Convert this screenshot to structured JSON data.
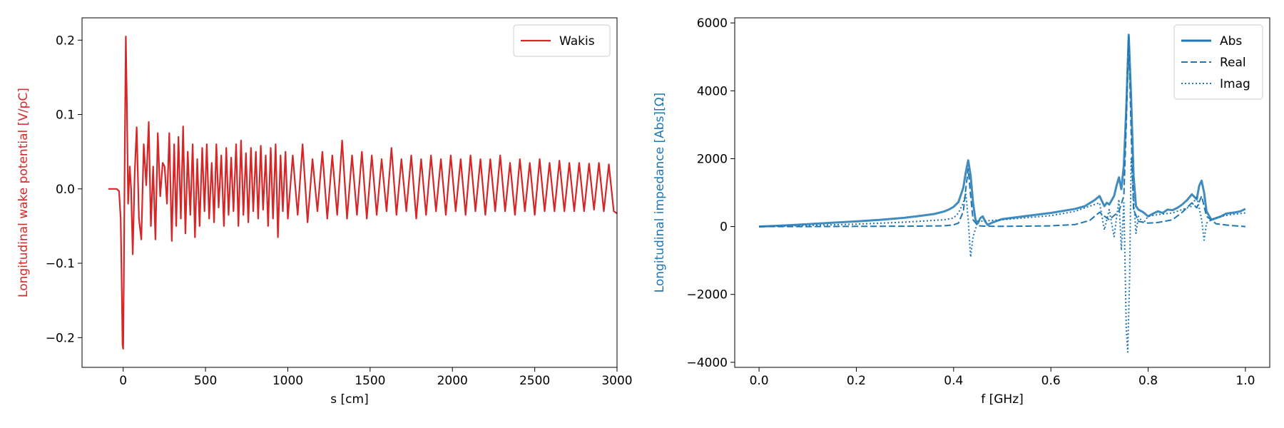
{
  "chart_data": [
    {
      "type": "line",
      "xlabel": "s [cm]",
      "ylabel": "Longitudinal wake potential [V/pC]",
      "xlim": [
        -250,
        3000
      ],
      "ylim": [
        -0.24,
        0.23
      ],
      "xticks": [
        0,
        500,
        1000,
        1500,
        2000,
        2500,
        3000
      ],
      "xtick_labels": [
        "0",
        "500",
        "1000",
        "1500",
        "2000",
        "2500",
        "3000"
      ],
      "yticks": [
        -0.2,
        -0.1,
        0.0,
        0.1,
        0.2
      ],
      "ytick_labels": [
        "−0.2",
        "−0.1",
        "0.0",
        "0.1",
        "0.2"
      ],
      "ylabel_color": "#d62728",
      "grid": false,
      "legend": "top-right",
      "series": [
        {
          "name": "Wakis",
          "color": "#d62728",
          "style": "solid",
          "x": [
            -90,
            -40,
            -25,
            -15,
            -8,
            -4,
            0,
            4,
            10,
            16,
            22,
            30,
            40,
            48,
            58,
            70,
            82,
            96,
            110,
            125,
            140,
            155,
            168,
            182,
            196,
            210,
            225,
            240,
            252,
            266,
            280,
            295,
            310,
            322,
            336,
            350,
            364,
            378,
            392,
            408,
            422,
            436,
            450,
            464,
            480,
            494,
            508,
            522,
            538,
            552,
            566,
            580,
            596,
            612,
            626,
            640,
            656,
            670,
            686,
            700,
            716,
            730,
            746,
            760,
            776,
            790,
            806,
            820,
            836,
            850,
            866,
            880,
            896,
            910,
            926,
            940,
            956,
            970,
            986,
            1000,
            1030,
            1060,
            1090,
            1120,
            1150,
            1180,
            1210,
            1240,
            1270,
            1300,
            1330,
            1360,
            1390,
            1420,
            1450,
            1480,
            1510,
            1540,
            1570,
            1600,
            1630,
            1660,
            1690,
            1720,
            1750,
            1780,
            1810,
            1840,
            1870,
            1900,
            1930,
            1960,
            1990,
            2020,
            2050,
            2080,
            2110,
            2140,
            2170,
            2200,
            2230,
            2260,
            2290,
            2320,
            2350,
            2380,
            2410,
            2440,
            2470,
            2500,
            2530,
            2560,
            2590,
            2620,
            2650,
            2680,
            2710,
            2740,
            2770,
            2800,
            2830,
            2860,
            2890,
            2920,
            2950,
            2980,
            3000
          ],
          "y": [
            0.0,
            0.0,
            -0.003,
            -0.04,
            -0.14,
            -0.21,
            -0.215,
            -0.12,
            0.06,
            0.205,
            0.12,
            -0.02,
            0.03,
            0.0,
            -0.088,
            0.02,
            0.083,
            -0.04,
            -0.068,
            0.06,
            0.005,
            0.09,
            -0.05,
            0.03,
            -0.068,
            0.075,
            -0.01,
            0.035,
            0.03,
            -0.02,
            0.075,
            -0.07,
            0.06,
            -0.05,
            0.07,
            -0.04,
            0.084,
            -0.06,
            0.05,
            -0.035,
            0.06,
            -0.065,
            0.04,
            -0.05,
            0.055,
            -0.03,
            0.06,
            -0.04,
            0.035,
            -0.045,
            0.06,
            -0.025,
            0.045,
            -0.05,
            0.055,
            -0.035,
            0.042,
            -0.03,
            0.06,
            -0.05,
            0.065,
            -0.035,
            0.048,
            -0.045,
            0.055,
            -0.03,
            0.05,
            -0.04,
            0.058,
            -0.028,
            0.045,
            -0.05,
            0.055,
            -0.04,
            0.06,
            -0.065,
            0.045,
            -0.03,
            0.05,
            -0.04,
            0.045,
            -0.035,
            0.06,
            -0.045,
            0.04,
            -0.03,
            0.05,
            -0.04,
            0.045,
            -0.035,
            0.065,
            -0.04,
            0.045,
            -0.035,
            0.05,
            -0.04,
            0.045,
            -0.035,
            0.04,
            -0.03,
            0.055,
            -0.035,
            0.04,
            -0.03,
            0.045,
            -0.04,
            0.04,
            -0.035,
            0.045,
            -0.03,
            0.04,
            -0.035,
            0.045,
            -0.03,
            0.04,
            -0.035,
            0.045,
            -0.03,
            0.04,
            -0.035,
            0.04,
            -0.03,
            0.045,
            -0.03,
            0.035,
            -0.035,
            0.04,
            -0.03,
            0.035,
            -0.035,
            0.04,
            -0.03,
            0.035,
            -0.03,
            0.038,
            -0.03,
            0.035,
            -0.03,
            0.035,
            -0.03,
            0.034,
            -0.028,
            0.035,
            -0.03,
            0.033,
            -0.03,
            -0.033
          ]
        }
      ]
    },
    {
      "type": "line",
      "xlabel": "f [GHz]",
      "ylabel": "Longitudinal impedance [Abs][Ω]",
      "xlim": [
        -0.05,
        1.05
      ],
      "ylim": [
        -4150,
        6150
      ],
      "xticks": [
        0.0,
        0.2,
        0.4,
        0.6,
        0.8,
        1.0
      ],
      "xtick_labels": [
        "0.0",
        "0.2",
        "0.4",
        "0.6",
        "0.8",
        "1.0"
      ],
      "yticks": [
        -4000,
        -2000,
        0,
        2000,
        4000,
        6000
      ],
      "ytick_labels": [
        "−4000",
        "−2000",
        "0",
        "2000",
        "4000",
        "6000"
      ],
      "ylabel_color": "#1f77b4",
      "grid": false,
      "legend": "top-right",
      "series": [
        {
          "name": "Abs",
          "color": "#1f77b4",
          "style": "solid",
          "x": [
            0.0,
            0.05,
            0.1,
            0.15,
            0.2,
            0.25,
            0.3,
            0.33,
            0.36,
            0.38,
            0.39,
            0.4,
            0.41,
            0.42,
            0.425,
            0.43,
            0.435,
            0.44,
            0.445,
            0.45,
            0.455,
            0.46,
            0.465,
            0.47,
            0.48,
            0.5,
            0.55,
            0.6,
            0.65,
            0.67,
            0.69,
            0.7,
            0.71,
            0.715,
            0.72,
            0.73,
            0.735,
            0.74,
            0.745,
            0.75,
            0.755,
            0.76,
            0.765,
            0.77,
            0.775,
            0.78,
            0.79,
            0.8,
            0.81,
            0.82,
            0.83,
            0.84,
            0.85,
            0.86,
            0.87,
            0.88,
            0.89,
            0.9,
            0.905,
            0.91,
            0.915,
            0.92,
            0.93,
            0.94,
            0.95,
            0.96,
            0.97,
            0.98,
            0.99,
            1.0
          ],
          "y": [
            0,
            30,
            70,
            110,
            150,
            200,
            260,
            310,
            370,
            440,
            500,
            580,
            720,
            1150,
            1600,
            1950,
            1500,
            700,
            200,
            100,
            250,
            300,
            150,
            50,
            120,
            220,
            310,
            400,
            520,
            600,
            780,
            900,
            600,
            700,
            650,
            900,
            1200,
            1450,
            1100,
            1800,
            3500,
            5650,
            3800,
            1500,
            600,
            500,
            420,
            300,
            380,
            450,
            400,
            500,
            480,
            550,
            650,
            780,
            950,
            800,
            1200,
            1350,
            1000,
            450,
            200,
            250,
            300,
            380,
            400,
            420,
            450,
            520
          ]
        },
        {
          "name": "Real",
          "color": "#1f77b4",
          "style": "dashed",
          "x": [
            0.0,
            0.1,
            0.2,
            0.3,
            0.38,
            0.4,
            0.41,
            0.42,
            0.425,
            0.43,
            0.435,
            0.44,
            0.45,
            0.47,
            0.5,
            0.6,
            0.65,
            0.68,
            0.7,
            0.72,
            0.74,
            0.75,
            0.755,
            0.76,
            0.765,
            0.77,
            0.78,
            0.8,
            0.82,
            0.85,
            0.87,
            0.89,
            0.9,
            0.91,
            0.92,
            0.94,
            0.97,
            1.0
          ],
          "y": [
            0,
            0,
            5,
            10,
            20,
            50,
            100,
            450,
            1100,
            1700,
            900,
            200,
            20,
            10,
            5,
            20,
            60,
            180,
            420,
            200,
            450,
            900,
            3000,
            5600,
            2800,
            500,
            150,
            100,
            120,
            200,
            420,
            700,
            550,
            900,
            300,
            80,
            30,
            0
          ]
        },
        {
          "name": "Imag",
          "color": "#1f77b4",
          "style": "dotted",
          "x": [
            0.0,
            0.1,
            0.2,
            0.3,
            0.38,
            0.4,
            0.41,
            0.42,
            0.425,
            0.43,
            0.435,
            0.44,
            0.45,
            0.5,
            0.6,
            0.65,
            0.68,
            0.7,
            0.71,
            0.72,
            0.73,
            0.74,
            0.745,
            0.75,
            0.755,
            0.758,
            0.762,
            0.765,
            0.77,
            0.775,
            0.78,
            0.79,
            0.8,
            0.82,
            0.85,
            0.87,
            0.89,
            0.9,
            0.91,
            0.915,
            0.92,
            0.93,
            0.95,
            0.97,
            1.0
          ],
          "y": [
            0,
            30,
            70,
            130,
            200,
            250,
            400,
            700,
            1000,
            200,
            -900,
            -300,
            150,
            200,
            320,
            450,
            600,
            700,
            -100,
            500,
            -300,
            800,
            -700,
            700,
            -3000,
            -3700,
            -1500,
            2000,
            800,
            -200,
            300,
            100,
            300,
            350,
            400,
            500,
            600,
            900,
            200,
            -400,
            100,
            200,
            300,
            350,
            400
          ]
        }
      ]
    }
  ]
}
